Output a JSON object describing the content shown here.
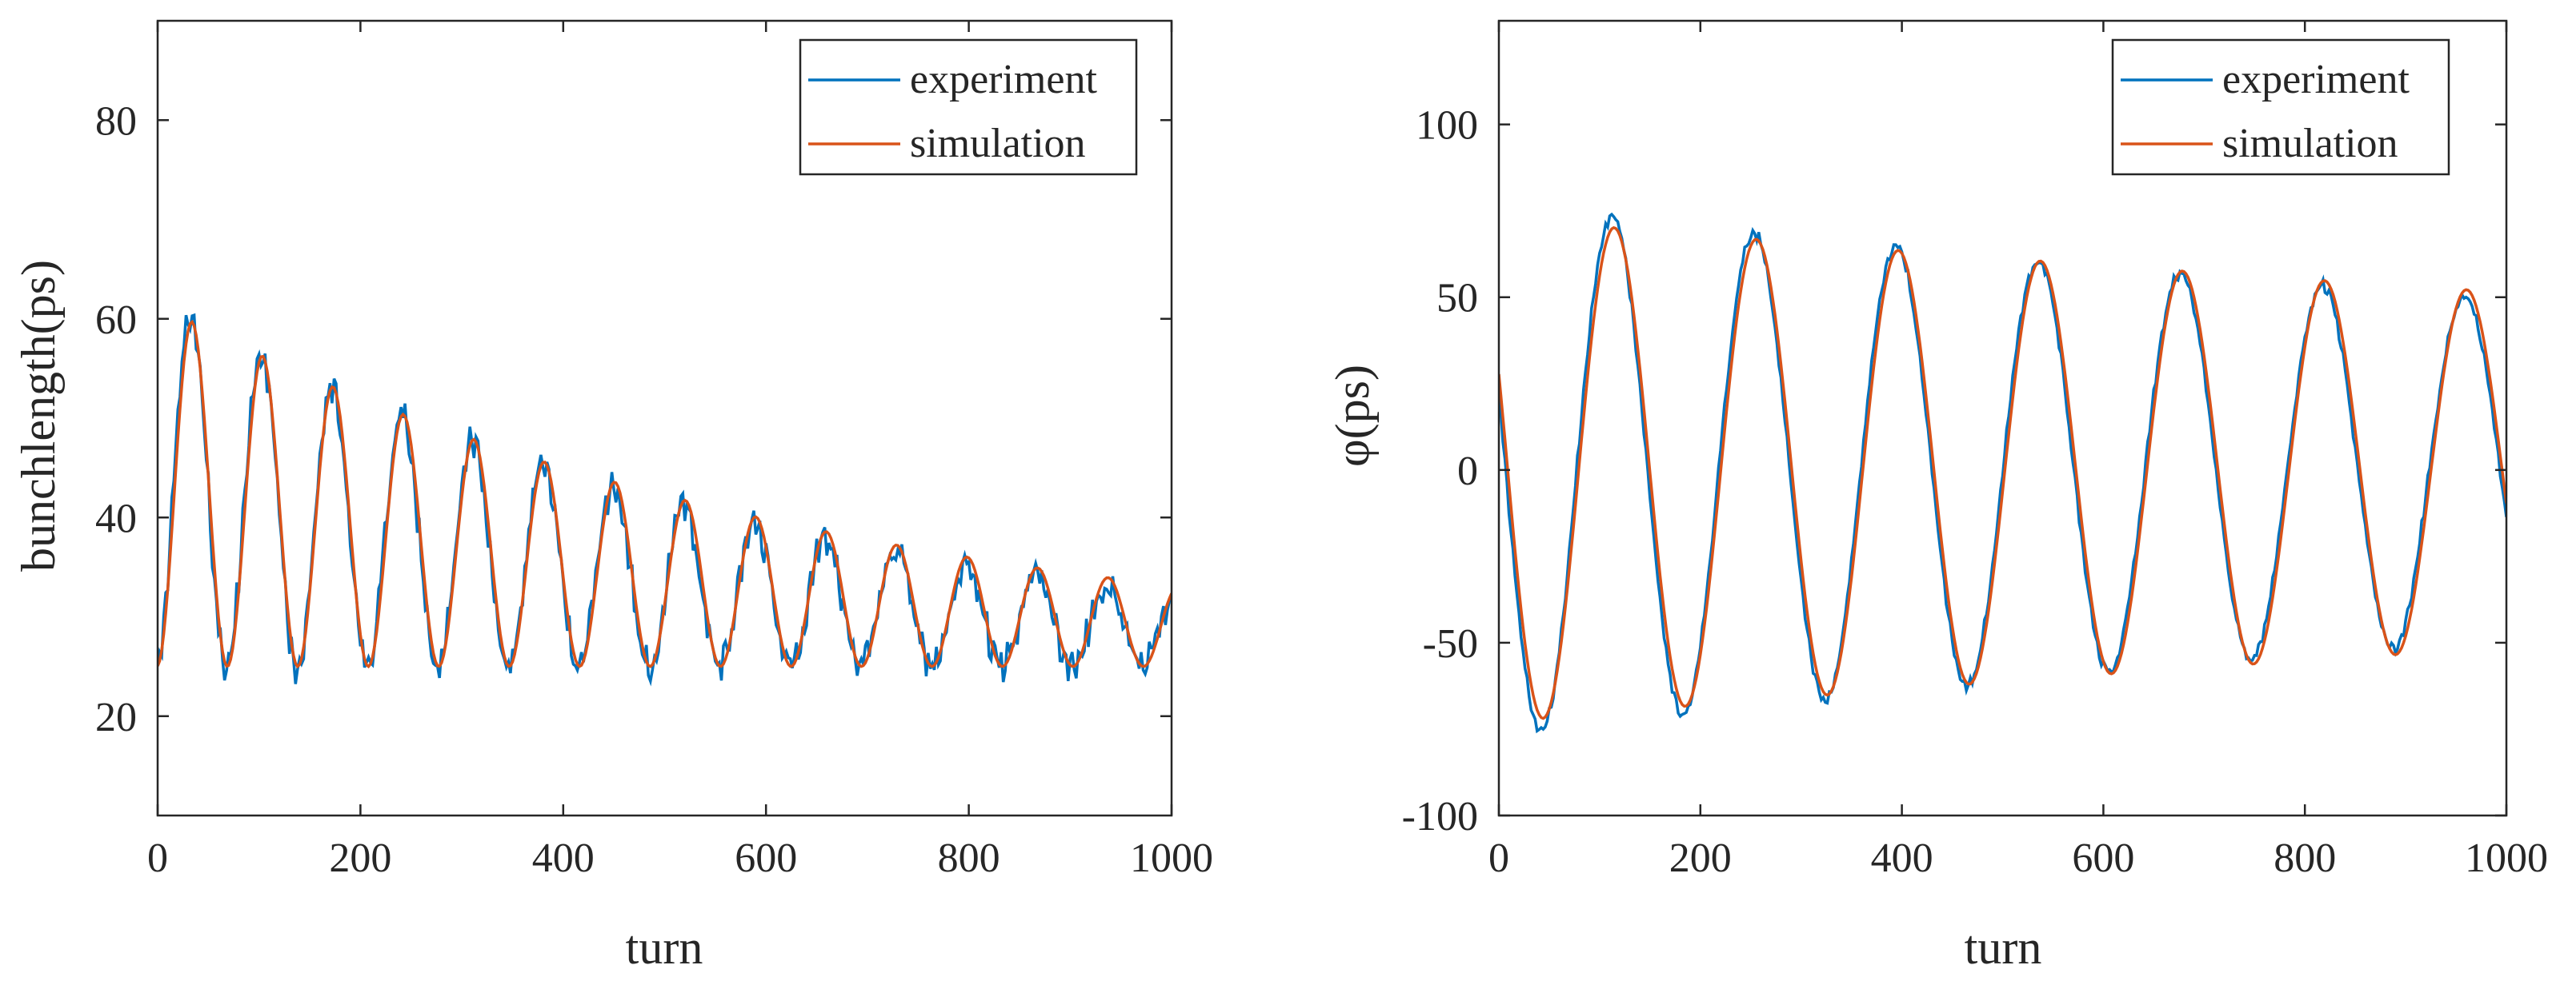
{
  "chart_data": [
    {
      "type": "line",
      "id": "left",
      "xlabel": "turn",
      "ylabel": "bunchlength(ps)",
      "xlim": [
        0,
        1000
      ],
      "ylim": [
        10,
        90
      ],
      "xticks": [
        0,
        200,
        400,
        600,
        800,
        1000
      ],
      "xtick_labels": [
        "0",
        "200",
        "400",
        "600",
        "800",
        "1000"
      ],
      "yticks": [
        20,
        40,
        60,
        80
      ],
      "ytick_labels": [
        "20",
        "40",
        "60",
        "80"
      ],
      "legend": {
        "placement": "top-right",
        "entries": [
          "experiment",
          "simulation"
        ]
      },
      "series": [
        {
          "name": "experiment",
          "color": "#0072BD",
          "model": {
            "x_start": 0,
            "x_end": 1000,
            "step": 2,
            "base": 25,
            "amp0": 37,
            "amp_decay": 0.0016,
            "period": 69.5,
            "phase_turn": 33,
            "noise": 1.3
          }
        },
        {
          "name": "simulation",
          "color": "#D95319",
          "model": {
            "x_start": 0,
            "x_end": 1000,
            "step": 2,
            "base": 25,
            "amp0": 36.5,
            "amp_decay": 0.0015,
            "period": 69.5,
            "phase_turn": 34,
            "noise": 0
          }
        }
      ]
    },
    {
      "type": "line",
      "id": "right",
      "xlabel": "turn",
      "ylabel": "φ(ps)",
      "xlim": [
        0,
        1000
      ],
      "ylim": [
        -100,
        130
      ],
      "xticks": [
        0,
        200,
        400,
        600,
        800,
        1000
      ],
      "xtick_labels": [
        "0",
        "200",
        "400",
        "600",
        "800",
        "1000"
      ],
      "yticks": [
        -100,
        -50,
        0,
        50,
        100
      ],
      "ytick_labels": [
        "-100",
        "-50",
        "0",
        "50",
        "100"
      ],
      "legend": {
        "placement": "top-right",
        "entries": [
          "experiment",
          "simulation"
        ]
      },
      "series": [
        {
          "name": "experiment",
          "color": "#0072BD",
          "model": {
            "x_start": 0,
            "x_end": 1000,
            "step": 2,
            "mean": 0,
            "amp0": 77,
            "amp_decay": 0.00045,
            "period": 141,
            "phase_turn": 42,
            "sign": -1,
            "noise": 1.2
          }
        },
        {
          "name": "simulation",
          "color": "#D95319",
          "model": {
            "x_start": 0,
            "x_end": 1000,
            "step": 2,
            "mean": 0,
            "amp0": 73,
            "amp_decay": 0.00035,
            "period": 141,
            "phase_turn": 44,
            "sign": -1,
            "noise": 0
          }
        }
      ]
    }
  ]
}
